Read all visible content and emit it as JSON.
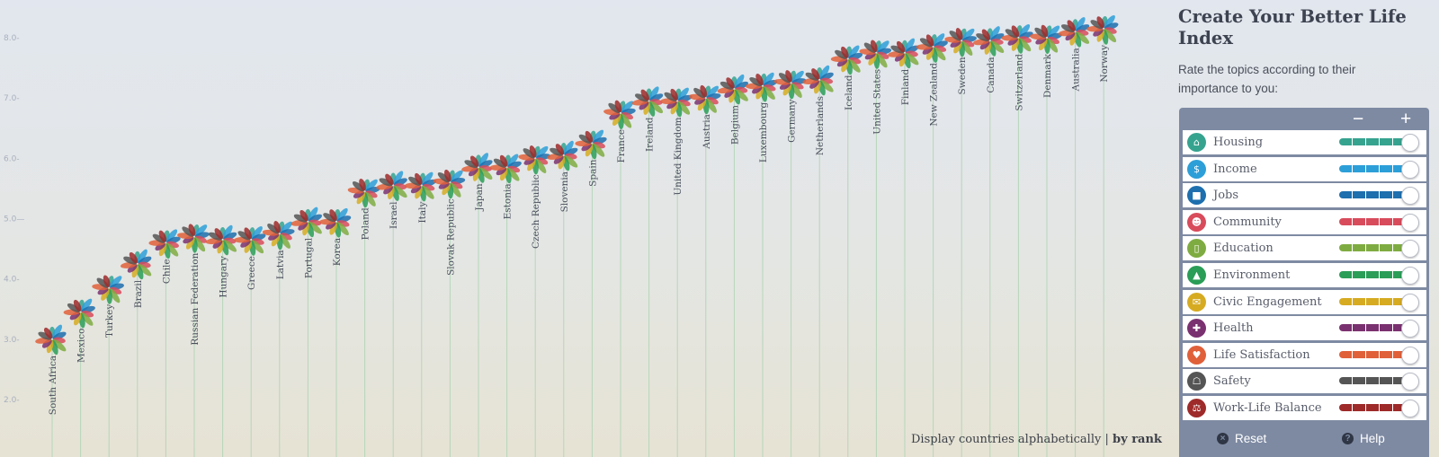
{
  "chart_data": {
    "type": "scatter",
    "title": "",
    "xlabel": "",
    "ylabel": "",
    "ylim": [
      1.5,
      8.6
    ],
    "y_ticks": [
      2.0,
      3.0,
      4.0,
      5.0,
      6.0,
      7.0,
      8.0
    ],
    "y_tick_labels": [
      "2.0-",
      "3.0-",
      "4.0-",
      "5.0—",
      "6.0-",
      "7.0-",
      "8.0-"
    ],
    "categories": [
      "South Africa",
      "Mexico",
      "Turkey",
      "Brazil",
      "Chile",
      "Russian Federation",
      "Hungary",
      "Greece",
      "Latvia",
      "Portugal",
      "Korea",
      "Poland",
      "Israel",
      "Italy",
      "Slovak Republic",
      "Japan",
      "Estonia",
      "Czech Republic",
      "Slovenia",
      "Spain",
      "France",
      "Ireland",
      "United Kingdom",
      "Austria",
      "Belgium",
      "Luxembourg",
      "Germany",
      "Netherlands",
      "Iceland",
      "United States",
      "Finland",
      "New Zealand",
      "Sweden",
      "Canada",
      "Switzerland",
      "Denmark",
      "Australia",
      "Norway"
    ],
    "values": [
      3.0,
      3.45,
      3.85,
      4.25,
      4.6,
      4.7,
      4.65,
      4.65,
      4.75,
      4.95,
      4.95,
      5.45,
      5.55,
      5.55,
      5.6,
      5.85,
      5.85,
      6.0,
      6.05,
      6.25,
      6.75,
      6.95,
      6.95,
      7.0,
      7.15,
      7.2,
      7.25,
      7.3,
      7.65,
      7.75,
      7.75,
      7.85,
      7.95,
      7.95,
      8.0,
      8.0,
      8.1,
      8.15
    ],
    "legend": [
      "Housing",
      "Income",
      "Jobs",
      "Community",
      "Education",
      "Environment",
      "Civic Engagement",
      "Health",
      "Life Satisfaction",
      "Safety",
      "Work-Life Balance"
    ],
    "legend_colors": [
      "#36a38f",
      "#2d9fd8",
      "#1d6fae",
      "#d84b5b",
      "#7fac42",
      "#2a9d57",
      "#d6ab22",
      "#7a3170",
      "#e0603a",
      "#555555",
      "#9e2a2a"
    ]
  },
  "sort": {
    "alpha_label": "Display countries alphabetically",
    "separator": "|",
    "rank_label": "by rank"
  },
  "sidebar": {
    "title": "Create Your Better Life Index",
    "subtitle": "Rate the topics according to their importance to you:",
    "minus": "−",
    "plus": "+",
    "topics": [
      {
        "label": "Housing",
        "color": "#36a38f",
        "icon": "house-icon",
        "glyph": "⌂"
      },
      {
        "label": "Income",
        "color": "#2d9fd8",
        "icon": "money-icon",
        "glyph": "$"
      },
      {
        "label": "Jobs",
        "color": "#1d6fae",
        "icon": "briefcase-icon",
        "glyph": "■"
      },
      {
        "label": "Community",
        "color": "#d84b5b",
        "icon": "people-icon",
        "glyph": "☻"
      },
      {
        "label": "Education",
        "color": "#7fac42",
        "icon": "book-icon",
        "glyph": "▯"
      },
      {
        "label": "Environment",
        "color": "#2a9d57",
        "icon": "tree-icon",
        "glyph": "▲"
      },
      {
        "label": "Civic Engagement",
        "color": "#d6ab22",
        "icon": "ballot-icon",
        "glyph": "✉"
      },
      {
        "label": "Health",
        "color": "#7a3170",
        "icon": "cross-icon",
        "glyph": "✚"
      },
      {
        "label": "Life Satisfaction",
        "color": "#e0603a",
        "icon": "heart-icon",
        "glyph": "♥"
      },
      {
        "label": "Safety",
        "color": "#555555",
        "icon": "runner-icon",
        "glyph": "☖"
      },
      {
        "label": "Work-Life Balance",
        "color": "#9e2a2a",
        "icon": "scale-icon",
        "glyph": "⚖"
      }
    ],
    "reset_label": "Reset",
    "help_label": "Help"
  }
}
